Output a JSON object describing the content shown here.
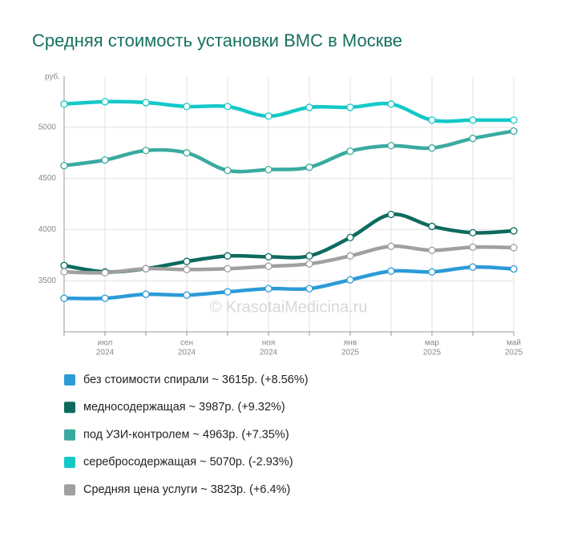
{
  "chart_data": {
    "type": "line",
    "title": "Средняя стоимость установки ВМС в Москве",
    "y_unit": "руб.",
    "annotation": "© KrasotaiMedicina.ru",
    "categories": [
      null,
      [
        "июл",
        "2024"
      ],
      null,
      [
        "сен",
        "2024"
      ],
      null,
      [
        "ноя",
        "2024"
      ],
      null,
      [
        "янв",
        "2025"
      ],
      null,
      [
        "мар",
        "2025"
      ],
      null,
      [
        "май",
        "2025"
      ]
    ],
    "ylim": [
      3000,
      5500
    ],
    "yticks": [
      3500,
      4000,
      4500,
      5000
    ],
    "grid": true,
    "legend": "bottom",
    "series": [
      {
        "name": "без стоимости спирали ~ 3615р. (+8.56%)",
        "color": "#2b9bd8",
        "values": [
          3328,
          3328,
          3367,
          3359,
          3391,
          3422,
          3422,
          3508,
          3594,
          3586,
          3633,
          3615
        ]
      },
      {
        "name": "медносодержащая ~ 3987р. (+9.32%)",
        "color": "#0d6b5e",
        "values": [
          3648,
          3586,
          3617,
          3688,
          3742,
          3734,
          3742,
          3922,
          4148,
          4031,
          3969,
          3987
        ]
      },
      {
        "name": "под УЗИ-контролем ~ 4963р. (+7.35%)",
        "color": "#3aaa9f",
        "values": [
          4625,
          4680,
          4773,
          4750,
          4578,
          4586,
          4609,
          4766,
          4820,
          4797,
          4891,
          4963
        ]
      },
      {
        "name": "серебросодержащая ~ 5070р. (-2.93%)",
        "color": "#14c8c8",
        "values": [
          5227,
          5250,
          5242,
          5203,
          5203,
          5109,
          5195,
          5195,
          5227,
          5070,
          5070,
          5070
        ]
      },
      {
        "name": "Средняя цена услуги ~ 3823р. (+6.4%)",
        "color": "#a0a0a0",
        "values": [
          3586,
          3578,
          3617,
          3609,
          3617,
          3641,
          3664,
          3742,
          3836,
          3797,
          3828,
          3823
        ]
      }
    ]
  }
}
